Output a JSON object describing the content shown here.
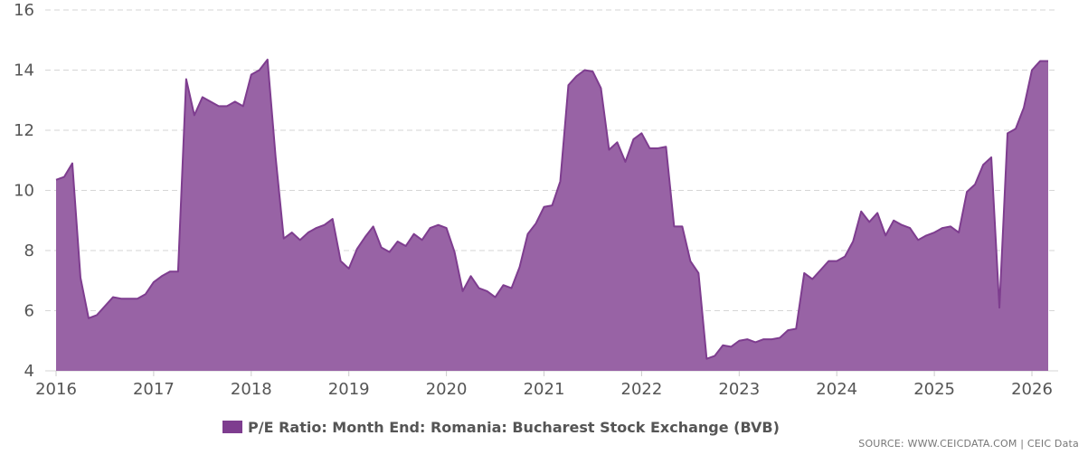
{
  "chart_data": {
    "type": "area",
    "start": "2016-01",
    "frequency": "monthly",
    "series": [
      {
        "name": "P/E Ratio: Month End: Romania: Bucharest Stock Exchange (BVB)",
        "color": "#7e3d8f",
        "fill": "#9863a5",
        "values": [
          10.35,
          10.45,
          10.9,
          7.1,
          5.75,
          5.85,
          6.15,
          6.45,
          6.4,
          6.4,
          6.4,
          6.55,
          6.95,
          7.15,
          7.3,
          7.3,
          13.7,
          12.5,
          13.1,
          12.95,
          12.8,
          12.8,
          12.95,
          12.8,
          13.85,
          14.0,
          14.35,
          11.1,
          8.4,
          8.6,
          8.35,
          8.6,
          8.75,
          8.85,
          9.05,
          7.65,
          7.4,
          8.05,
          8.45,
          8.8,
          8.1,
          7.95,
          8.3,
          8.15,
          8.55,
          8.35,
          8.75,
          8.85,
          8.75,
          7.95,
          6.65,
          7.15,
          6.75,
          6.65,
          6.45,
          6.85,
          6.75,
          7.45,
          8.55,
          8.9,
          9.45,
          9.5,
          10.3,
          13.5,
          13.8,
          14.0,
          13.95,
          13.4,
          11.35,
          11.6,
          10.95,
          11.7,
          11.9,
          11.4,
          11.4,
          11.45,
          8.8,
          8.8,
          7.65,
          7.25,
          4.4,
          4.5,
          4.85,
          4.8,
          5.0,
          5.05,
          4.95,
          5.05,
          5.05,
          5.1,
          5.35,
          5.4,
          7.25,
          7.05,
          7.35,
          7.65,
          7.65,
          7.8,
          8.3,
          9.3,
          8.95,
          9.25,
          8.5,
          9.0,
          8.85,
          8.75,
          8.35,
          8.5,
          8.6,
          8.75,
          8.8,
          8.6,
          9.95,
          10.2,
          10.85,
          11.1,
          6.1,
          11.9,
          12.05,
          12.75,
          14.0,
          14.3,
          14.3
        ]
      }
    ],
    "x_ticks": [
      "2016",
      "2017",
      "2018",
      "2019",
      "2020",
      "2021",
      "2022",
      "2023",
      "2024",
      "2025",
      "2026"
    ],
    "y_ticks": [
      "4",
      "6",
      "8",
      "10",
      "12",
      "14",
      "16"
    ],
    "ylim": [
      4,
      16
    ],
    "grid": "horizontal dashed",
    "legend_position": "bottom",
    "source": "SOURCE: WWW.CEICDATA.COM | CEIC Data"
  }
}
